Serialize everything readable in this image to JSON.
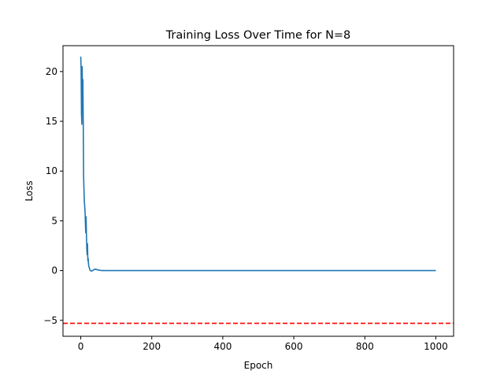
{
  "chart_data": {
    "type": "line",
    "title": "Training Loss Over Time for N=8",
    "xlabel": "Epoch",
    "ylabel": "Loss",
    "xlim": [
      -50,
      1050
    ],
    "ylim": [
      -6.6,
      22.6
    ],
    "x_ticks": [
      0,
      200,
      400,
      600,
      800,
      1000
    ],
    "y_ticks": [
      -5,
      0,
      5,
      10,
      15,
      20
    ],
    "x_tick_labels": [
      "0",
      "200",
      "400",
      "600",
      "800",
      "1000"
    ],
    "y_tick_labels": [
      "−5",
      "0",
      "5",
      "10",
      "15",
      "20"
    ],
    "grid": false,
    "legend": false,
    "series": [
      {
        "color": "#1f77b4",
        "x": [
          0,
          1,
          2,
          3,
          4,
          5,
          6,
          7,
          8,
          9,
          10,
          12,
          14,
          15,
          16,
          17,
          18,
          19,
          20,
          21,
          22,
          23,
          24,
          25,
          26,
          28,
          30,
          33,
          36,
          40,
          45,
          50,
          55,
          60,
          70,
          80,
          100,
          150,
          200,
          300,
          400,
          500,
          600,
          700,
          800,
          900,
          1000
        ],
        "y": [
          21.5,
          20.3,
          15.8,
          14.7,
          20.5,
          16.5,
          19.2,
          15.0,
          9.5,
          8.2,
          7.0,
          6.0,
          3.8,
          5.4,
          3.6,
          2.2,
          1.6,
          2.7,
          1.0,
          1.2,
          0.6,
          0.4,
          0.3,
          0.15,
          0.05,
          -0.02,
          -0.05,
          0.0,
          0.05,
          0.15,
          0.1,
          0.05,
          0.02,
          0.0,
          0.0,
          0.0,
          0.0,
          0.0,
          0.0,
          0.0,
          0.0,
          0.0,
          0.0,
          0.0,
          0.0,
          0.0,
          0.0
        ]
      }
    ],
    "reference_lines": [
      {
        "orientation": "horizontal",
        "y": -5.3,
        "color": "#ff0000",
        "style": "dashed"
      }
    ]
  }
}
